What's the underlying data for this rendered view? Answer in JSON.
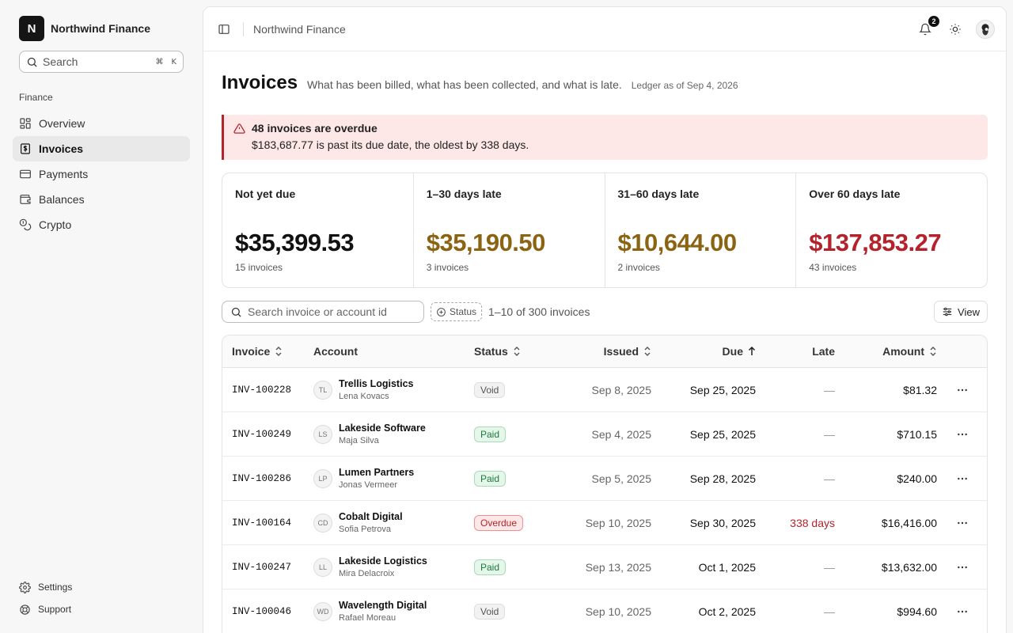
{
  "brand": {
    "logo_letter": "N",
    "name": "Northwind Finance"
  },
  "sidebar": {
    "search_placeholder": "Search",
    "search_shortcut": [
      "⌘",
      "K"
    ],
    "section_label": "Finance",
    "items": [
      {
        "label": "Overview",
        "icon": "layout-grid-icon",
        "active": false
      },
      {
        "label": "Invoices",
        "icon": "receipt-icon",
        "active": true
      },
      {
        "label": "Payments",
        "icon": "credit-card-icon",
        "active": false
      },
      {
        "label": "Balances",
        "icon": "wallet-icon",
        "active": false
      },
      {
        "label": "Crypto",
        "icon": "coins-icon",
        "active": false
      }
    ],
    "footer": [
      {
        "label": "Settings",
        "icon": "gear-icon"
      },
      {
        "label": "Support",
        "icon": "lifebuoy-icon"
      }
    ]
  },
  "topbar": {
    "breadcrumb": "Northwind Finance",
    "notifications_count": "2"
  },
  "page": {
    "title": "Invoices",
    "subtitle": "What has been billed, what has been collected, and what is late.",
    "as_of": "Ledger as of Sep 4, 2026"
  },
  "alert": {
    "title": "48 invoices are overdue",
    "body": "$183,687.77 is past its due date, the oldest by 338 days."
  },
  "summary_cards": [
    {
      "label": "Not yet due",
      "value": "$35,399.53",
      "count": "15 invoices",
      "color": "#111111"
    },
    {
      "label": "1–30 days late",
      "value": "$35,190.50",
      "count": "3 invoices",
      "color": "#8a6412"
    },
    {
      "label": "31–60 days late",
      "value": "$10,644.00",
      "count": "2 invoices",
      "color": "#8a6412"
    },
    {
      "label": "Over 60 days late",
      "value": "$137,853.27",
      "count": "43 invoices",
      "color": "#b4232b"
    }
  ],
  "toolbar": {
    "search_placeholder": "Search invoice or account id",
    "status_filter": "Status",
    "count_text": "1–10 of 300 invoices",
    "view_label": "View"
  },
  "table": {
    "headers": {
      "invoice": "Invoice",
      "account": "Account",
      "status": "Status",
      "issued": "Issued",
      "due": "Due",
      "late": "Late",
      "amount": "Amount"
    },
    "rows": [
      {
        "invoice": "INV-100228",
        "initials": "TL",
        "account": "Trellis Logistics",
        "person": "Lena Kovacs",
        "status": "Void",
        "issued": "Sep 8, 2025",
        "due": "Sep 25, 2025",
        "late": "—",
        "amount": "$81.32"
      },
      {
        "invoice": "INV-100249",
        "initials": "LS",
        "account": "Lakeside Software",
        "person": "Maja Silva",
        "status": "Paid",
        "issued": "Sep 4, 2025",
        "due": "Sep 25, 2025",
        "late": "—",
        "amount": "$710.15"
      },
      {
        "invoice": "INV-100286",
        "initials": "LP",
        "account": "Lumen Partners",
        "person": "Jonas Vermeer",
        "status": "Paid",
        "issued": "Sep 5, 2025",
        "due": "Sep 28, 2025",
        "late": "—",
        "amount": "$240.00"
      },
      {
        "invoice": "INV-100164",
        "initials": "CD",
        "account": "Cobalt Digital",
        "person": "Sofia Petrova",
        "status": "Overdue",
        "issued": "Sep 10, 2025",
        "due": "Sep 30, 2025",
        "late": "338 days",
        "amount": "$16,416.00"
      },
      {
        "invoice": "INV-100247",
        "initials": "LL",
        "account": "Lakeside Logistics",
        "person": "Mira Delacroix",
        "status": "Paid",
        "issued": "Sep 13, 2025",
        "due": "Oct 1, 2025",
        "late": "—",
        "amount": "$13,632.00"
      },
      {
        "invoice": "INV-100046",
        "initials": "WD",
        "account": "Wavelength Digital",
        "person": "Rafael Moreau",
        "status": "Void",
        "issued": "Sep 10, 2025",
        "due": "Oct 2, 2025",
        "late": "—",
        "amount": "$994.60"
      }
    ]
  }
}
